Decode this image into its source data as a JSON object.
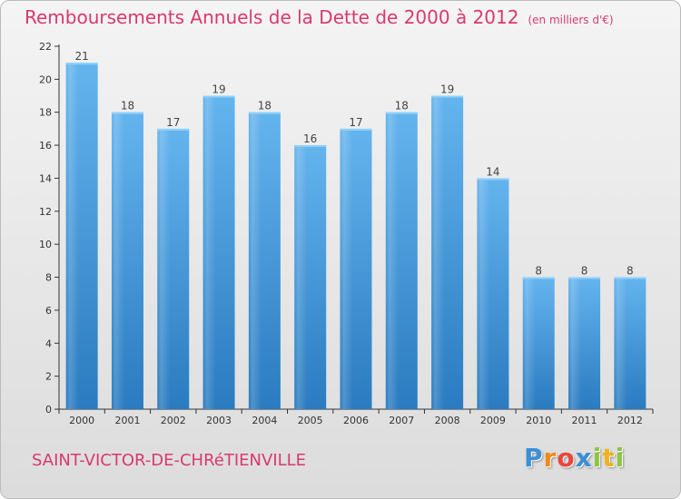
{
  "title": "Remboursements Annuels de la Dette de 2000 à 2012",
  "unit_note": "(en milliers d'€)",
  "commune": "SAINT-VICTOR-DE-CHRéTIENVILLE",
  "brand": {
    "letters": [
      "P",
      "r",
      "o",
      "x",
      "i",
      "t",
      "i"
    ],
    "colors": [
      "#3a8fd6",
      "#f08a1c",
      "#e8473a",
      "#3a8fd6",
      "#8cc63f",
      "#f0b21c",
      "#8cc63f"
    ]
  },
  "colors": {
    "title": "#d9396d",
    "bar_light": "#64b4ee",
    "bar_dark": "#2a7bc0",
    "axis": "#333333"
  },
  "chart_data": {
    "type": "bar",
    "categories": [
      "2000",
      "2001",
      "2002",
      "2003",
      "2004",
      "2005",
      "2006",
      "2007",
      "2008",
      "2009",
      "2010",
      "2011",
      "2012"
    ],
    "values": [
      21,
      18,
      17,
      19,
      18,
      16,
      17,
      18,
      19,
      14,
      8,
      8,
      8
    ],
    "yticks": [
      0,
      2,
      4,
      6,
      8,
      10,
      12,
      14,
      16,
      18,
      20,
      22
    ],
    "ylim": [
      0,
      22
    ],
    "grid": false,
    "legend": "none"
  }
}
